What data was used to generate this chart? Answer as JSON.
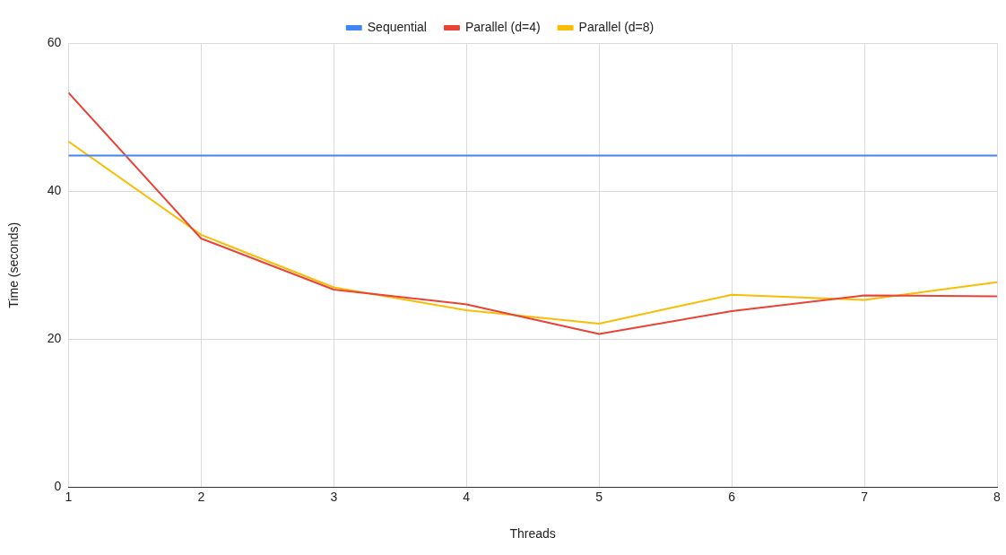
{
  "chart_data": {
    "type": "line",
    "xlabel": "Threads",
    "ylabel": "Time (seconds)",
    "x": [
      1,
      2,
      3,
      4,
      5,
      6,
      7,
      8
    ],
    "xlim": [
      1,
      8
    ],
    "xticks": [
      1,
      2,
      3,
      4,
      5,
      6,
      7,
      8
    ],
    "ylim": [
      0,
      60
    ],
    "yticks": [
      0,
      20,
      40,
      60
    ],
    "grid": true,
    "legend": "top",
    "marker": "none",
    "line_style": "solid",
    "series": [
      {
        "name": "Sequential",
        "color": "#4285f4",
        "values": [
          44.8,
          44.8,
          44.8,
          44.8,
          44.8,
          44.8,
          44.8,
          44.8
        ]
      },
      {
        "name": "Parallel (d=4)",
        "color": "#ea4335",
        "values": [
          53.3,
          33.6,
          26.7,
          24.7,
          20.7,
          23.8,
          25.9,
          25.8
        ]
      },
      {
        "name": "Parallel (d=8)",
        "color": "#fbbc04",
        "values": [
          46.7,
          34.1,
          27.0,
          23.9,
          22.1,
          26.0,
          25.3,
          27.7
        ]
      }
    ]
  }
}
